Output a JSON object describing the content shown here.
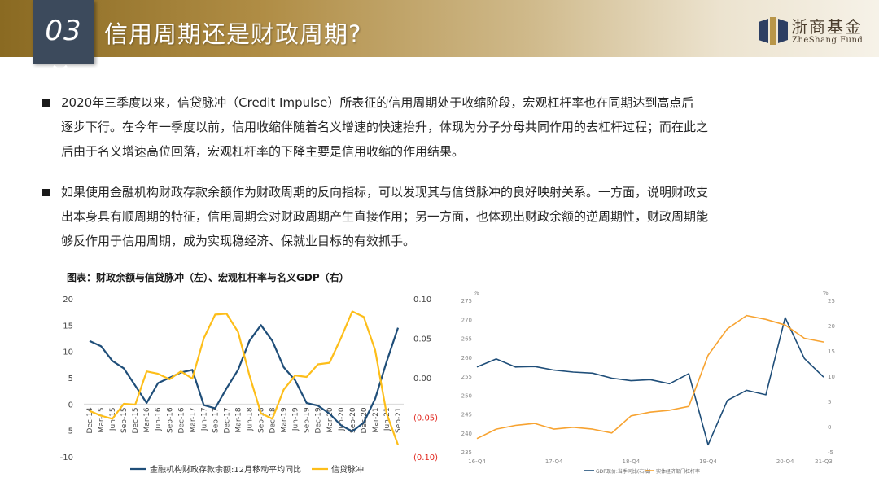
{
  "header": {
    "number": "03",
    "title": "信用周期还是财政周期?",
    "logo_cn": "浙商基金",
    "logo_en": "ZheShang Fund"
  },
  "paragraphs": [
    {
      "lines": [
        "2020年三季度以来，信贷脉冲（Credit Impulse）所表征的信用周期处于收缩阶段，宏观杠杆率也在同期达到高点后",
        "逐步下行。在今年一季度以前，信用收缩伴随着名义增速的快速抬升，体现为分子分母共同作用的去杠杆过程；而在此之",
        "后由于名义增速高位回落，宏观杠杆率的下降主要是信用收缩的作用结果。"
      ]
    },
    {
      "lines": [
        "如果使用金融机构财政存款余额作为财政周期的反向指标，可以发现其与信贷脉冲的良好映射关系。一方面，说明财政支",
        "出本身具有顺周期的特征，信用周期会对财政周期产生直接作用；另一方面，也体现出财政余额的逆周期性，财政周期能",
        "够反作用于信用周期，成为实现稳经济、保就业目标的有效抓手。"
      ]
    }
  ],
  "chart_caption": "图表：财政余额与信贷脉冲（左）、宏观杠杆率与名义GDP（右）",
  "chart_data": [
    {
      "type": "line",
      "x": [
        "Dec-14",
        "Mar-15",
        "Jun-15",
        "Sep-15",
        "Dec-15",
        "Mar-16",
        "Jun-16",
        "Sep-16",
        "Dec-16",
        "Mar-17",
        "Jun-17",
        "Sep-17",
        "Dec-17",
        "Mar-18",
        "Jun-18",
        "Sep-18",
        "Dec-18",
        "Mar-19",
        "Jun-19",
        "Sep-19",
        "Dec-19",
        "Mar-20",
        "Jun-20",
        "Sep-20",
        "Dec-20",
        "Mar-21",
        "Jun-21",
        "Sep-21"
      ],
      "y_left": {
        "range": [
          -10,
          20
        ],
        "ticks": [
          "20",
          "15",
          "10",
          "5",
          "0",
          "-5",
          "-10"
        ]
      },
      "y_right": {
        "range": [
          -0.1,
          0.1
        ],
        "ticks": [
          "0.10",
          "0.05",
          "0.00",
          "(0.05)",
          "(0.10)"
        ],
        "negative_color": "#e0241b"
      },
      "series": [
        {
          "name": "金融机构财政存款余额:12月移动平均同比",
          "color": "#1f4e79",
          "axis": "left",
          "values": [
            12.0,
            11.0,
            8.2,
            6.8,
            3.5,
            0.2,
            4.0,
            5.0,
            6.0,
            6.5,
            -0.2,
            -0.8,
            3.0,
            6.5,
            12.0,
            15.0,
            12.0,
            7.0,
            4.5,
            0.2,
            -0.3,
            -1.8,
            -4.0,
            -5.2,
            -3.5,
            1.0,
            8.0,
            14.5
          ]
        },
        {
          "name": "信贷脉冲",
          "color": "#fdbe1a",
          "axis": "right",
          "values": [
            -0.042,
            -0.048,
            -0.052,
            -0.033,
            -0.034,
            0.008,
            0.005,
            -0.002,
            0.008,
            -0.001,
            0.05,
            0.08,
            0.081,
            0.058,
            0.003,
            -0.045,
            -0.052,
            -0.015,
            0.003,
            0.001,
            0.017,
            0.019,
            0.05,
            0.084,
            0.077,
            0.035,
            -0.045,
            -0.085
          ]
        }
      ]
    },
    {
      "type": "line",
      "x_ticks": [
        "16-Q4",
        "17-Q4",
        "18-Q4",
        "19-Q4",
        "20-Q4",
        "21-Q3"
      ],
      "y_left": {
        "range": [
          235,
          275
        ],
        "ticks": [
          "275",
          "270",
          "265",
          "260",
          "255",
          "250",
          "245",
          "240",
          "235"
        ],
        "unit": "%"
      },
      "y_right": {
        "range": [
          -5,
          25
        ],
        "ticks": [
          "25",
          "20",
          "15",
          "10",
          "5",
          "0",
          "-5"
        ],
        "unit": "%"
      },
      "series": [
        {
          "name": "GDP现价:当季同比(右轴)",
          "color": "#1f4e79",
          "axis": "right",
          "values": [
            11.8,
            13.4,
            11.8,
            11.9,
            11.2,
            10.8,
            10.6,
            9.6,
            9.1,
            9.3,
            8.5,
            10.5,
            -3.6,
            5.2,
            7.2,
            6.3,
            21.6,
            13.5,
            9.8
          ]
        },
        {
          "name": "实体经济部门杠杆率",
          "color": "#f7a331",
          "axis": "left",
          "values": [
            238.5,
            241.0,
            242.0,
            242.5,
            241.0,
            241.5,
            241.0,
            240.0,
            244.5,
            245.5,
            246.0,
            247.0,
            260.5,
            267.5,
            271.0,
            270.0,
            268.5,
            265.0,
            264.0
          ]
        }
      ]
    }
  ]
}
